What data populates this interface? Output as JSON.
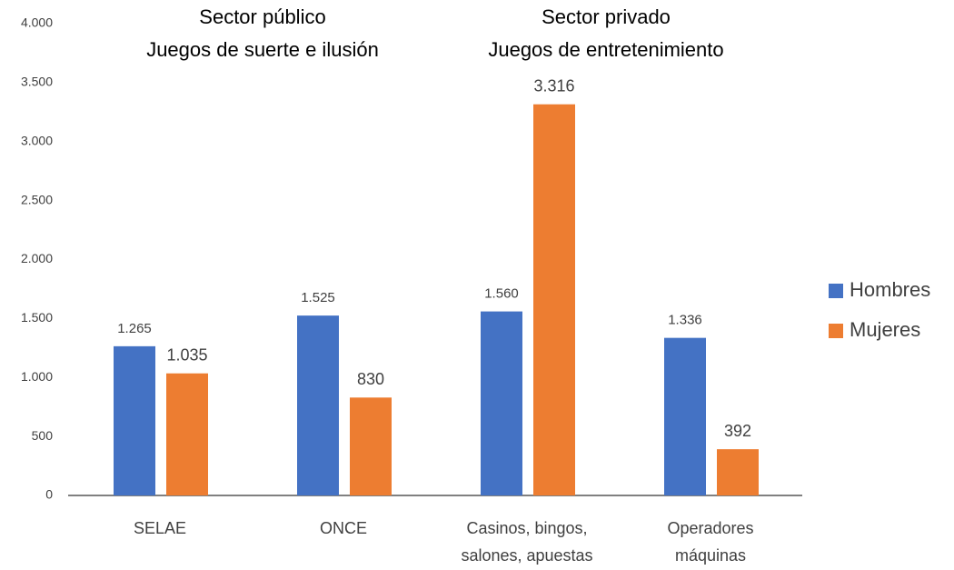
{
  "chart_data": {
    "type": "bar",
    "categories": [
      [
        "SELAE"
      ],
      [
        "ONCE"
      ],
      [
        "Casinos, bingos,",
        "salones, apuestas"
      ],
      [
        "Operadores",
        "máquinas"
      ]
    ],
    "series": [
      {
        "name": "Hombres",
        "color": "#4472c4",
        "values": [
          1265,
          1525,
          1560,
          1336
        ],
        "value_labels": [
          "1.265",
          "1.525",
          "1.560",
          "1.336"
        ]
      },
      {
        "name": "Mujeres",
        "color": "#ed7d31",
        "values": [
          1035,
          830,
          3316,
          392
        ],
        "value_labels": [
          "1.035",
          "830",
          "3.316",
          "392"
        ]
      }
    ],
    "annotations": [
      {
        "lines": [
          "Sector público",
          "Juegos de suerte e ilusión"
        ]
      },
      {
        "lines": [
          "Sector privado",
          "Juegos de entretenimiento"
        ]
      }
    ],
    "ylim": [
      0,
      4000
    ],
    "yticks": [
      0,
      500,
      {
        "value": 1000,
        "label": "1.000"
      },
      {
        "value": 1500,
        "label": "1.500"
      },
      {
        "value": 2000,
        "label": "2.000"
      },
      {
        "value": 2500,
        "label": "2.500"
      },
      {
        "value": 3000,
        "label": "3.000"
      },
      {
        "value": 3500,
        "label": "3.500"
      },
      {
        "value": 4000,
        "label": "4.000"
      }
    ],
    "grid": false,
    "legend": "right"
  }
}
